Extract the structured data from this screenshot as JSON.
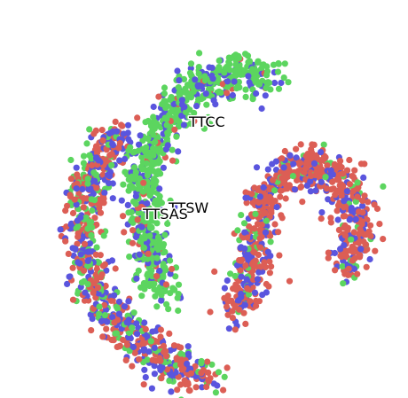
{
  "chart_data": {
    "type": "scatter",
    "title": "",
    "xlabel": "",
    "ylabel": "",
    "axes_visible": false,
    "grid": false,
    "legend": "none",
    "colors": {
      "red": "#dc5e55",
      "green": "#5cd55f",
      "blue": "#5a55de"
    },
    "cluster_labels": [
      {
        "text": "TTCC",
        "x": 0.0,
        "y": 0.0
      },
      {
        "text": "TTSW",
        "x": 0.0,
        "y": 0.0
      },
      {
        "text": "TTSAS",
        "x": 0.0,
        "y": 0.0
      }
    ],
    "structure": [
      {
        "name": "outer-arc",
        "points": [
          [
            0.52,
            1.0
          ],
          [
            0.44,
            0.97
          ],
          [
            0.37,
            0.93
          ],
          [
            0.3,
            0.88
          ],
          [
            0.24,
            0.82
          ],
          [
            0.2,
            0.75
          ],
          [
            0.17,
            0.66
          ],
          [
            0.16,
            0.58
          ],
          [
            0.17,
            0.5
          ],
          [
            0.19,
            0.43
          ],
          [
            0.22,
            0.37
          ],
          [
            0.27,
            0.31
          ]
        ],
        "mix": {
          "red": 0.45,
          "blue": 0.35,
          "green": 0.2
        }
      },
      {
        "name": "inner-arc",
        "points": [
          [
            0.4,
            0.76
          ],
          [
            0.36,
            0.7
          ],
          [
            0.34,
            0.63
          ],
          [
            0.33,
            0.56
          ],
          [
            0.33,
            0.49
          ],
          [
            0.34,
            0.42
          ],
          [
            0.36,
            0.35
          ],
          [
            0.4,
            0.28
          ],
          [
            0.44,
            0.23
          ],
          [
            0.49,
            0.19
          ],
          [
            0.55,
            0.17
          ],
          [
            0.62,
            0.16
          ],
          [
            0.68,
            0.17
          ]
        ],
        "mix": {
          "green": 0.75,
          "blue": 0.2,
          "red": 0.05
        }
      },
      {
        "name": "right-tail",
        "points": [
          [
            0.58,
            0.8
          ],
          [
            0.62,
            0.74
          ],
          [
            0.64,
            0.66
          ],
          [
            0.65,
            0.58
          ],
          [
            0.67,
            0.5
          ],
          [
            0.72,
            0.44
          ],
          [
            0.78,
            0.41
          ],
          [
            0.84,
            0.42
          ],
          [
            0.89,
            0.46
          ],
          [
            0.93,
            0.53
          ],
          [
            0.92,
            0.62
          ],
          [
            0.9,
            0.7
          ]
        ],
        "mix": {
          "red": 0.65,
          "blue": 0.25,
          "green": 0.1
        }
      }
    ]
  }
}
